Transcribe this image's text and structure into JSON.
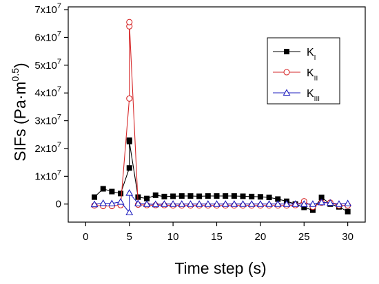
{
  "chart_data": {
    "type": "line",
    "xlabel": "Time step (s)",
    "ylabel": "SIFs (Pa·m",
    "ylabel_exponent": "0.5",
    "ylabel_close": ")",
    "xlim": [
      -2,
      32
    ],
    "ylim": [
      -6500000,
      71000000
    ],
    "x_ticks": [
      0,
      5,
      10,
      15,
      20,
      25,
      30
    ],
    "x_tick_labels": [
      "0",
      "5",
      "10",
      "15",
      "20",
      "25",
      "30"
    ],
    "y_ticks": [
      0,
      10000000,
      20000000,
      30000000,
      40000000,
      50000000,
      60000000,
      70000000
    ],
    "y_tick_labels": [
      {
        "base": "0",
        "exp": ""
      },
      {
        "base": "1x10",
        "exp": "7"
      },
      {
        "base": "2x10",
        "exp": "7"
      },
      {
        "base": "3x10",
        "exp": "7"
      },
      {
        "base": "4x10",
        "exp": "7"
      },
      {
        "base": "5x10",
        "exp": "7"
      },
      {
        "base": "6x10",
        "exp": "7"
      },
      {
        "base": "7x10",
        "exp": "7"
      }
    ],
    "grid": false,
    "legend_position": "top-right",
    "series": [
      {
        "name": "K",
        "subscript": "I",
        "color": "#000000",
        "marker": "square-filled",
        "points": [
          [
            1,
            2500000
          ],
          [
            2,
            5500000
          ],
          [
            3,
            4500000
          ],
          [
            4,
            3800000
          ],
          [
            5,
            13000000
          ],
          [
            5,
            23000000
          ],
          [
            5,
            22500000
          ],
          [
            6,
            2500000
          ],
          [
            7,
            2000000
          ],
          [
            8,
            3200000
          ],
          [
            9,
            2700000
          ],
          [
            10,
            2800000
          ],
          [
            11,
            2900000
          ],
          [
            12,
            2900000
          ],
          [
            13,
            2800000
          ],
          [
            14,
            2900000
          ],
          [
            15,
            2900000
          ],
          [
            16,
            2900000
          ],
          [
            17,
            2900000
          ],
          [
            18,
            2800000
          ],
          [
            19,
            2700000
          ],
          [
            20,
            2600000
          ],
          [
            21,
            2400000
          ],
          [
            22,
            1800000
          ],
          [
            23,
            1000000
          ],
          [
            24,
            0
          ],
          [
            25,
            -1200000
          ],
          [
            26,
            -2200000
          ],
          [
            27,
            2400000
          ],
          [
            28,
            0
          ],
          [
            29,
            -1000000
          ],
          [
            30,
            -2700000
          ]
        ]
      },
      {
        "name": "K",
        "subscript": "II",
        "color": "#d62728",
        "marker": "circle-open",
        "points": [
          [
            1,
            -500000
          ],
          [
            2,
            -700000
          ],
          [
            3,
            -700000
          ],
          [
            4,
            -400000
          ],
          [
            5,
            38000000
          ],
          [
            5,
            64000000
          ],
          [
            5,
            65500000
          ],
          [
            6,
            -200000
          ],
          [
            7,
            -400000
          ],
          [
            8,
            -400000
          ],
          [
            9,
            -400000
          ],
          [
            10,
            -500000
          ],
          [
            11,
            -500000
          ],
          [
            12,
            -500000
          ],
          [
            13,
            -500000
          ],
          [
            14,
            -500000
          ],
          [
            15,
            -500000
          ],
          [
            16,
            -500000
          ],
          [
            17,
            -500000
          ],
          [
            18,
            -500000
          ],
          [
            19,
            -500000
          ],
          [
            20,
            -500000
          ],
          [
            21,
            -500000
          ],
          [
            22,
            -500000
          ],
          [
            23,
            -500000
          ],
          [
            24,
            -400000
          ],
          [
            25,
            1000000
          ],
          [
            26,
            -1000000
          ],
          [
            27,
            500000
          ],
          [
            28,
            500000
          ],
          [
            29,
            -500000
          ],
          [
            30,
            -500000
          ]
        ]
      },
      {
        "name": "K",
        "subscript": "III",
        "color": "#1f1fbf",
        "marker": "triangle-open",
        "points": [
          [
            1,
            -100000
          ],
          [
            2,
            300000
          ],
          [
            3,
            200000
          ],
          [
            4,
            800000
          ],
          [
            5,
            -3000000
          ],
          [
            5,
            4000000
          ],
          [
            6,
            200000
          ],
          [
            7,
            0
          ],
          [
            8,
            -100000
          ],
          [
            9,
            0
          ],
          [
            10,
            0
          ],
          [
            11,
            0
          ],
          [
            12,
            0
          ],
          [
            13,
            0
          ],
          [
            14,
            0
          ],
          [
            15,
            0
          ],
          [
            16,
            0
          ],
          [
            17,
            0
          ],
          [
            18,
            0
          ],
          [
            19,
            0
          ],
          [
            20,
            0
          ],
          [
            21,
            0
          ],
          [
            22,
            0
          ],
          [
            23,
            0
          ],
          [
            24,
            0
          ],
          [
            25,
            0
          ],
          [
            26,
            0
          ],
          [
            27,
            600000
          ],
          [
            28,
            400000
          ],
          [
            29,
            0
          ],
          [
            30,
            200000
          ]
        ]
      }
    ]
  }
}
